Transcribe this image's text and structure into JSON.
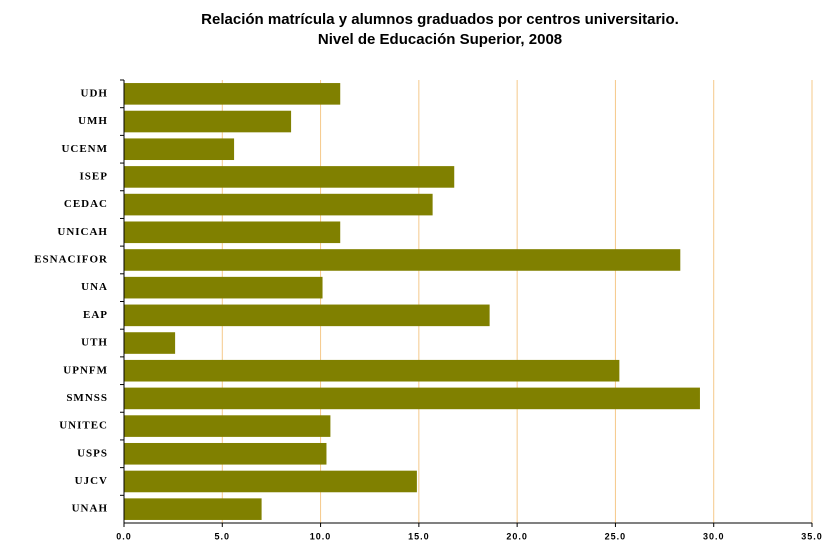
{
  "chart_data": {
    "type": "bar",
    "orientation": "horizontal",
    "title": "Relación matrícula  y alumnos graduados por centros universitario.",
    "subtitle": "Nivel de Educación Superior, 2008",
    "categories": [
      "UDH",
      "UMH",
      "UCENM",
      "ISEP",
      "CEDAC",
      "UNICAH",
      "ESNACIFOR",
      "UNA",
      "EAP",
      "UTH",
      "UPNFM",
      "SMNSS",
      "UNITEC",
      "USPS",
      "UJCV",
      "UNAH"
    ],
    "values": [
      11.0,
      8.5,
      5.6,
      16.8,
      15.7,
      11.0,
      28.3,
      10.1,
      18.6,
      2.6,
      25.2,
      29.3,
      10.5,
      10.3,
      14.9,
      7.0
    ],
    "color": "#808000",
    "grid_color": "#f5c98a",
    "xlim": [
      0,
      35
    ],
    "xticks": [
      {
        "value": 0,
        "label": "0.0"
      },
      {
        "value": 5,
        "label": "5.0"
      },
      {
        "value": 10,
        "label": "10.0"
      },
      {
        "value": 15,
        "label": "15.0"
      },
      {
        "value": 20,
        "label": "20.0"
      },
      {
        "value": 25,
        "label": "25.0"
      },
      {
        "value": 30,
        "label": "30.0"
      },
      {
        "value": 35,
        "label": "35.0"
      }
    ],
    "grid": true
  }
}
